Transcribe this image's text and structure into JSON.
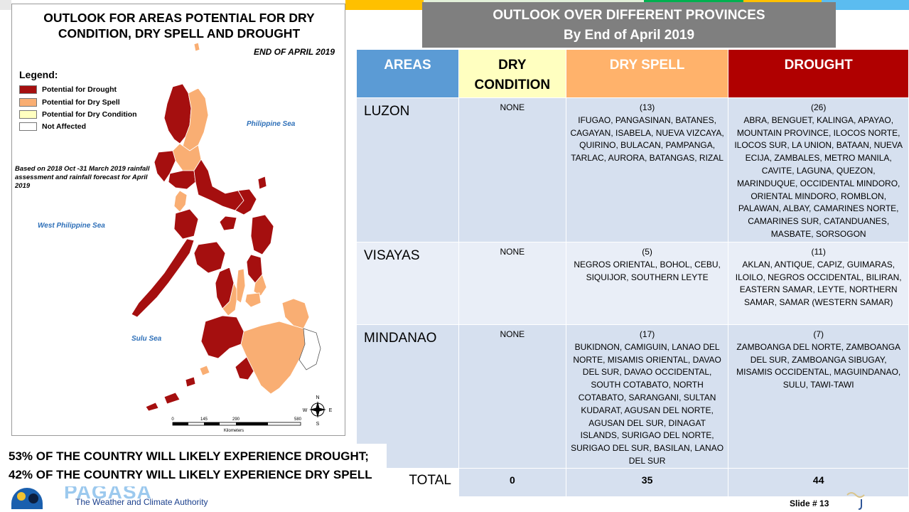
{
  "colors": {
    "drought": "#a50f0f",
    "dry_spell": "#f9ae73",
    "dry_condition": "#ffffc0",
    "not_affected": "#ffffff",
    "header_areas": "#5b9bd5",
    "header_drought": "#b00000",
    "title_box": "#7f7f7f"
  },
  "map": {
    "title": "OUTLOOK FOR AREAS POTENTIAL FOR DRY CONDITION,  DRY SPELL AND DROUGHT",
    "date": "END OF APRIL 2019",
    "legend_title": "Legend:",
    "legend": [
      {
        "label": "Potential for Drought",
        "color": "#a50f0f"
      },
      {
        "label": "Potential for Dry Spell",
        "color": "#f9ae73"
      },
      {
        "label": "Potential for Dry Condition",
        "color": "#ffffc0"
      },
      {
        "label": "Not Affected",
        "color": "#ffffff"
      }
    ],
    "basis": "Based on 2018 Oct -31 March 2019 rainfall assessment and rainfall forecast for April 2019",
    "seas": {
      "philippine": "Philippine Sea",
      "west_philippine": "West Philippine Sea",
      "sulu": "Sulu Sea"
    },
    "scale": {
      "ticks": [
        "0",
        "145",
        "290",
        "580"
      ],
      "unit": "Kilometers"
    },
    "compass": {
      "n": "N",
      "s": "S",
      "e": "E",
      "w": "W"
    }
  },
  "outlook": {
    "title_line1": "OUTLOOK OVER DIFFERENT PROVINCES",
    "title_line2": "By End of April 2019"
  },
  "table": {
    "headers": {
      "areas": "AREAS",
      "dry_line1": "DRY",
      "dry_line2": "CONDITION",
      "spell": "DRY SPELL",
      "drought": "DROUGHT"
    },
    "rows": [
      {
        "area": "LUZON",
        "dry": "NONE",
        "spell_count": "(13)",
        "spell": "IFUGAO, PANGASINAN, BATANES, CAGAYAN, ISABELA, NUEVA VIZCAYA, QUIRINO, BULACAN, PAMPANGA, TARLAC, AURORA, BATANGAS, RIZAL",
        "drought_count": "(26)",
        "drought": "ABRA, BENGUET,  KALINGA, APAYAO, MOUNTAIN PROVINCE, ILOCOS NORTE, ILOCOS SUR, LA UNION, BATAAN, NUEVA ECIJA, ZAMBALES, METRO MANILA, CAVITE, LAGUNA, QUEZON, MARINDUQUE, OCCIDENTAL MINDORO, ORIENTAL MINDORO, ROMBLON, PALAWAN, ALBAY, CAMARINES NORTE, CAMARINES SUR, CATANDUANES, MASBATE, SORSOGON"
      },
      {
        "area": "VISAYAS",
        "dry": "NONE",
        "spell_count": "(5)",
        "spell": "NEGROS ORIENTAL, BOHOL, CEBU, SIQUIJOR, SOUTHERN LEYTE",
        "drought_count": "(11)",
        "drought": "AKLAN, ANTIQUE, CAPIZ, GUIMARAS, ILOILO, NEGROS OCCIDENTAL, BILIRAN, EASTERN SAMAR, LEYTE, NORTHERN SAMAR, SAMAR (WESTERN SAMAR)"
      },
      {
        "area": "MINDANAO",
        "dry": "NONE",
        "spell_count": "(17)",
        "spell": "BUKIDNON, CAMIGUIN, LANAO DEL NORTE, MISAMIS ORIENTAL, DAVAO DEL SUR, DAVAO OCCIDENTAL, SOUTH COTABATO, NORTH COTABATO, SARANGANI, SULTAN KUDARAT, AGUSAN DEL NORTE, AGUSAN DEL SUR, DINAGAT ISLANDS, SURIGAO DEL NORTE, SURIGAO DEL SUR, BASILAN, LANAO DEL SUR",
        "drought_count": "(7)",
        "drought": "ZAMBOANGA DEL NORTE, ZAMBOANGA DEL SUR, ZAMBOANGA SIBUGAY, MISAMIS OCCIDENTAL, MAGUINDANAO, SULU, TAWI-TAWI"
      }
    ],
    "total": {
      "label": "TOTAL",
      "dry": "0",
      "spell": "35",
      "drought": "44"
    }
  },
  "stats": {
    "line1": "53% OF THE COUNTRY  WILL LIKELY EXPERIENCE DROUGHT;",
    "line2": "42% OF THE COUNTRY WILL LIKELY EXPERIENCE DRY SPELL"
  },
  "logo": {
    "word": "PAGASA",
    "subtitle": "The Weather and Climate Authority"
  },
  "slide": "Slide # 13"
}
